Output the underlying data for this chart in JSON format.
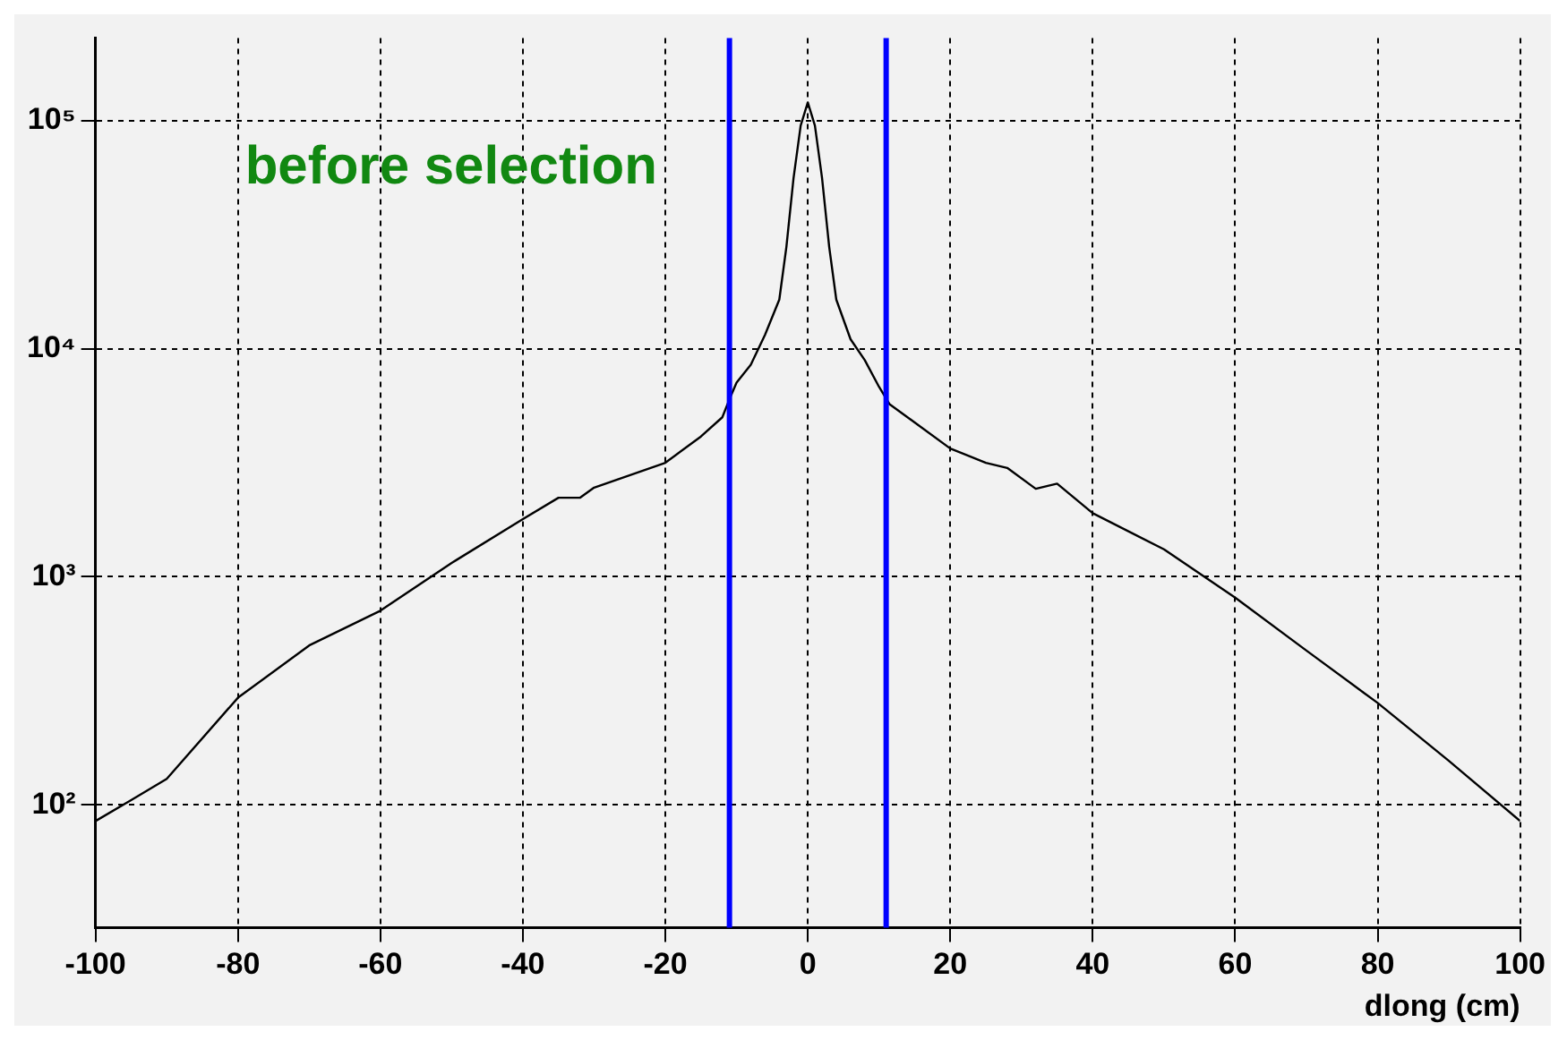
{
  "chart_data": {
    "type": "line",
    "xlabel": "dlong (cm)",
    "annotations": [
      "before selection"
    ],
    "x": [
      -100,
      -95,
      -90,
      -80,
      -70,
      -60,
      -50,
      -40,
      -35,
      -32,
      -30,
      -20,
      -15,
      -12,
      -11,
      -10,
      -8,
      -6,
      -4,
      -3,
      -2,
      -1,
      0,
      1,
      2,
      3,
      4,
      6,
      8,
      10,
      11.5,
      15,
      20,
      25,
      28,
      32,
      35,
      40,
      50,
      60,
      70,
      80,
      90,
      100
    ],
    "series": [
      {
        "color": "#000000",
        "values": [
          85,
          105,
          130,
          295,
          500,
          710,
          1150,
          1790,
          2220,
          2220,
          2460,
          3160,
          4120,
          5000,
          6000,
          7100,
          8500,
          11500,
          16400,
          28000,
          56000,
          95000,
          120000,
          95000,
          56000,
          28000,
          16400,
          11000,
          8900,
          6800,
          5700,
          4750,
          3650,
          3160,
          3000,
          2430,
          2560,
          1900,
          1320,
          810,
          475,
          280,
          156,
          85
        ]
      }
    ],
    "xlim": [
      -100,
      100
    ],
    "xticks": [
      -100,
      -80,
      -60,
      -40,
      -20,
      0,
      20,
      40,
      60,
      80,
      100
    ],
    "log": "y",
    "ylim": [
      29,
      230000
    ],
    "yticks": [
      {
        "value": 100,
        "label": "10²"
      },
      {
        "value": 1000,
        "label": "10³"
      },
      {
        "value": 10000,
        "label": "10⁴"
      },
      {
        "value": 100000,
        "label": "10⁵"
      }
    ],
    "ref_lines": [
      {
        "axis": "x",
        "value": -11,
        "color": "#0000ff"
      },
      {
        "axis": "x",
        "value": 11,
        "color": "#0000ff"
      }
    ],
    "grid": true,
    "legend": false,
    "marker": "none",
    "line_style": "solid"
  }
}
